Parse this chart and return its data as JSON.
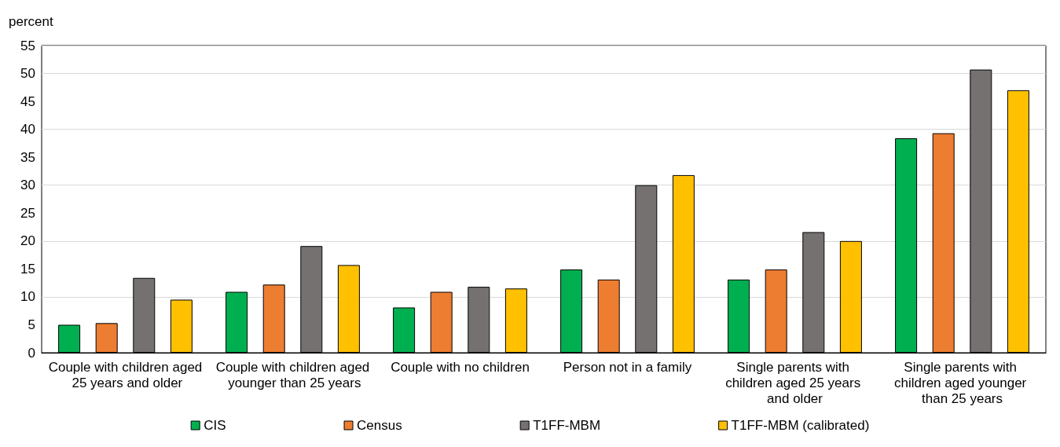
{
  "chart_data": {
    "type": "bar",
    "ylabel": "percent",
    "categories": [
      "Couple with children aged 25 years and older",
      "Couple with children aged younger than 25 years",
      "Couple with no children",
      "Person not in a family",
      "Single parents with children aged 25 years and older",
      "Single parents with children aged younger than 25 years"
    ],
    "series": [
      {
        "name": "CIS",
        "color": "#00b050",
        "values": [
          5.0,
          10.9,
          8.1,
          14.9,
          13.1,
          38.4
        ]
      },
      {
        "name": "Census",
        "color": "#ed7d31",
        "values": [
          5.3,
          12.2,
          10.9,
          13.1,
          14.9,
          39.3
        ]
      },
      {
        "name": "T1FF-MBM",
        "color": "#767171",
        "values": [
          13.4,
          19.1,
          11.8,
          30.0,
          21.6,
          50.7
        ]
      },
      {
        "name": "T1FF-MBM (calibrated)",
        "color": "#ffc000",
        "values": [
          9.5,
          15.7,
          11.5,
          31.8,
          20.0,
          47.0
        ]
      }
    ],
    "ylim": [
      0,
      55
    ],
    "yticks": [
      0,
      5,
      10,
      15,
      20,
      25,
      30,
      35,
      40,
      45,
      50,
      55
    ],
    "grid": "y",
    "legend": "bottom"
  }
}
